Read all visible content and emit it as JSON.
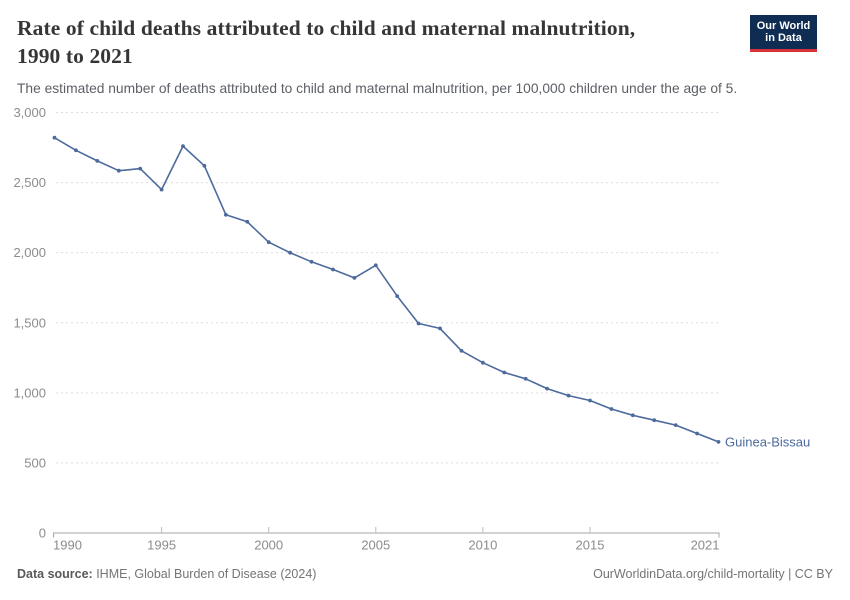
{
  "header": {
    "title_line1": "Rate of child deaths attributed to child and maternal malnutrition,",
    "title_line2": "1990 to 2021",
    "subtitle": "The estimated number of deaths attributed to child and maternal malnutrition, per 100,000 children under the age of 5.",
    "logo": {
      "line1": "Our World",
      "line2": "in Data"
    }
  },
  "footer": {
    "source_label": "Data source:",
    "source_value": " IHME, Global Burden of Disease (2024)",
    "rights": "OurWorldinData.org/child-mortality | CC BY"
  },
  "chart_data": {
    "type": "line",
    "title": "Rate of child deaths attributed to child and maternal malnutrition, 1990 to 2021",
    "subtitle": "The estimated number of deaths attributed to child and maternal malnutrition, per 100,000 children under the age of 5.",
    "x": [
      1990,
      1991,
      1992,
      1993,
      1994,
      1995,
      1996,
      1997,
      1998,
      1999,
      2000,
      2001,
      2002,
      2003,
      2004,
      2005,
      2006,
      2007,
      2008,
      2009,
      2010,
      2011,
      2012,
      2013,
      2014,
      2015,
      2016,
      2017,
      2018,
      2019,
      2020,
      2021
    ],
    "series": [
      {
        "name": "Guinea-Bissau",
        "values": [
          2820,
          2730,
          2655,
          2585,
          2600,
          2450,
          2760,
          2620,
          2270,
          2220,
          2075,
          2000,
          1935,
          1880,
          1820,
          1910,
          1690,
          1495,
          1460,
          1300,
          1215,
          1145,
          1100,
          1030,
          980,
          945,
          885,
          840,
          805,
          770,
          710,
          650
        ]
      }
    ],
    "end_label": "Guinea-Bissau",
    "ylim": [
      0,
      3000
    ],
    "yticks": [
      0,
      500,
      1000,
      1500,
      2000,
      2500,
      3000
    ],
    "ytick_labels": [
      "0",
      "500",
      "1,000",
      "1,500",
      "2,000",
      "2,500",
      "3,000"
    ],
    "xticks": [
      1990,
      1995,
      2000,
      2005,
      2010,
      2015,
      2021
    ],
    "xtick_labels": [
      "1990",
      "1995",
      "2000",
      "2005",
      "2010",
      "2015",
      "2021"
    ],
    "grid": "horizontal dashed",
    "legend": "end-of-line label"
  },
  "colors": {
    "line": "#4c6a9c",
    "grid": "#dddddd",
    "axis": "#a6a6a6",
    "tick_text": "#8c8c8c",
    "series_label": "#4c6a9c",
    "title_text": "#363636",
    "subtitle_text": "#5c6066",
    "footer_text": "#757575",
    "logo_bg": "#0f2d52",
    "logo_red": "#d8323c"
  }
}
